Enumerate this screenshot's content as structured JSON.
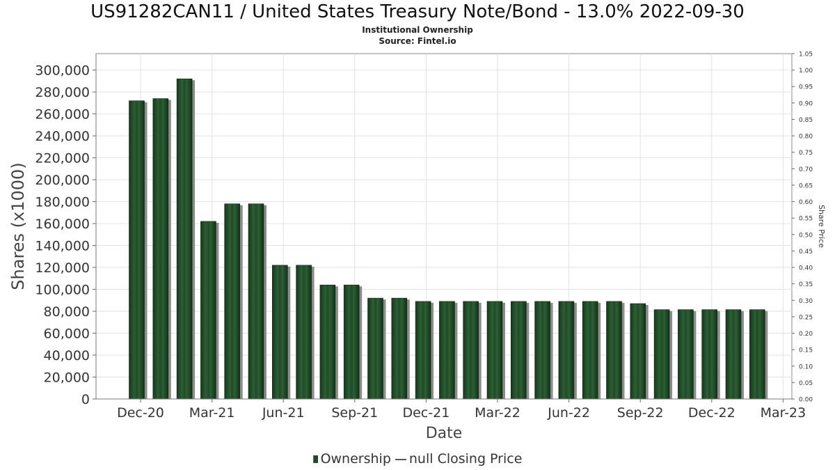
{
  "title": "US91282CAN11 / United States Treasury Note/Bond - 13.0% 2022-09-30",
  "subtitle_1": "Institutional Ownership",
  "subtitle_2": "Source: Fintel.io",
  "legend": {
    "ownership": "Ownership",
    "closing_price": "null Closing Price"
  },
  "colors": {
    "bar": "#1f4a26",
    "bar_shadow": "#8c8c8c",
    "grid": "#e2e2e2",
    "axis": "#888888"
  },
  "chart_data": {
    "type": "bar",
    "xlabel": "Date",
    "ylabel": "Shares (x1000)",
    "y2label": "Share Price",
    "ylim": [
      0,
      300000
    ],
    "y2lim": [
      0,
      1.05
    ],
    "grid": true,
    "legend_position": "bottom",
    "x_ticks": [
      "Dec-20",
      "Mar-21",
      "Jun-21",
      "Sep-21",
      "Dec-21",
      "Mar-22",
      "Jun-22",
      "Sep-22",
      "Dec-22",
      "Mar-23"
    ],
    "y_ticks": [
      "0",
      "20,000",
      "40,000",
      "60,000",
      "80,000",
      "100,000",
      "120,000",
      "140,000",
      "160,000",
      "180,000",
      "200,000",
      "220,000",
      "240,000",
      "260,000",
      "280,000",
      "300,000"
    ],
    "y2_ticks": [
      "0.00",
      "0.05",
      "0.10",
      "0.15",
      "0.20",
      "0.25",
      "0.30",
      "0.35",
      "0.40",
      "0.45",
      "0.50",
      "0.55",
      "0.60",
      "0.65",
      "0.70",
      "0.75",
      "0.80",
      "0.85",
      "0.90",
      "0.95",
      "1.00",
      "1.05"
    ],
    "series": [
      {
        "name": "Ownership",
        "values": [
          272000,
          274000,
          292000,
          162000,
          178000,
          178000,
          122000,
          122000,
          104000,
          104000,
          92000,
          92000,
          89000,
          89000,
          89000,
          89000,
          89000,
          89000,
          89000,
          89000,
          89000,
          87000,
          81500,
          81500,
          81500,
          81500,
          81500
        ]
      }
    ]
  }
}
